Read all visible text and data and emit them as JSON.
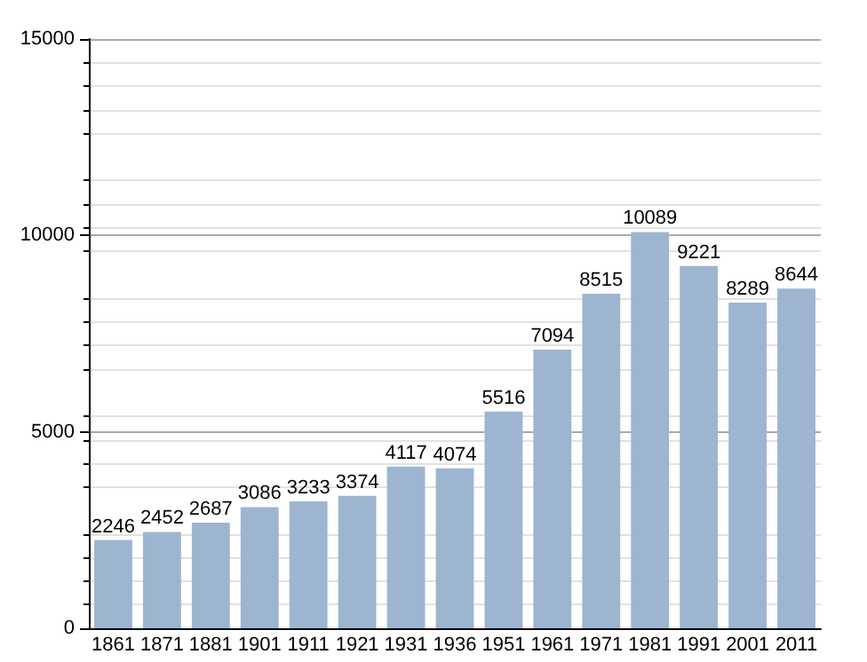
{
  "chart_data": {
    "type": "bar",
    "categories": [
      "1861",
      "1871",
      "1881",
      "1901",
      "1911",
      "1921",
      "1931",
      "1936",
      "1951",
      "1961",
      "1971",
      "1981",
      "1991",
      "2001",
      "2011"
    ],
    "values": [
      2246,
      2452,
      2687,
      3086,
      3233,
      3374,
      4117,
      4074,
      5516,
      7094,
      8515,
      10089,
      9221,
      8289,
      8644
    ],
    "color": "#9db5d1",
    "ylim": [
      0,
      15000
    ],
    "yticks": [
      0,
      5000,
      10000,
      15000
    ],
    "grid": true,
    "data_labels": true
  }
}
